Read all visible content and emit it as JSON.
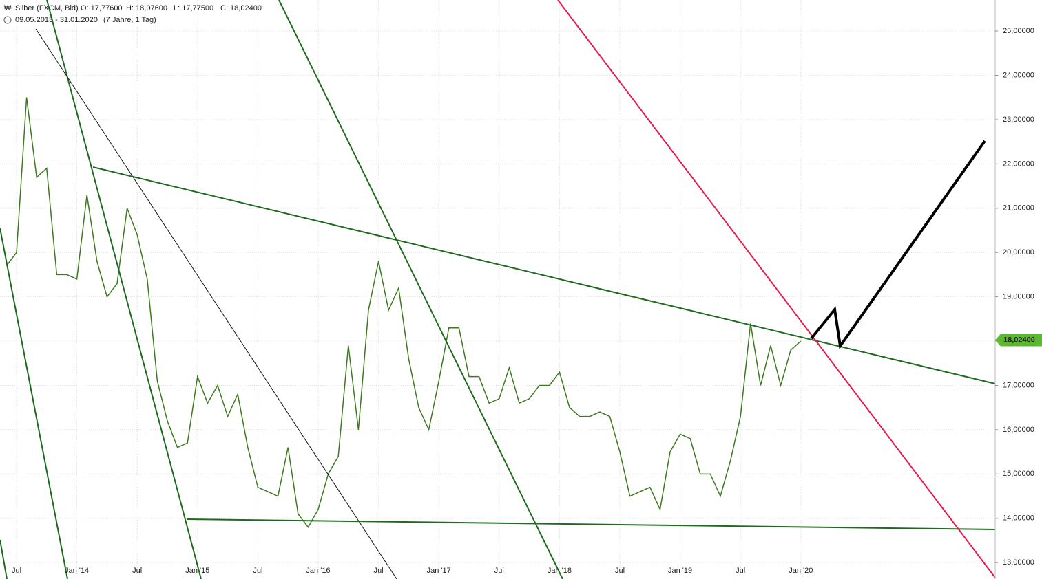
{
  "chart_data": {
    "type": "line",
    "title": "Silber (FXCM, Bid)",
    "open": "O: 17,77600",
    "high": "H: 18,07600",
    "low": "L: 17,77500",
    "close": "C: 18,02400",
    "date_range": "09.05.2013 - 31.01.2020",
    "period": "(7 Jahre, 1 Tag)",
    "last_price": {
      "value": 18.024,
      "label": "18,02400"
    },
    "categories": [
      null,
      "Jul",
      null,
      null,
      null,
      null,
      null,
      "Jan '14",
      null,
      null,
      null,
      null,
      null,
      "Jul",
      null,
      null,
      null,
      null,
      null,
      "Jan '15",
      null,
      null,
      null,
      null,
      null,
      "Jul",
      null,
      null,
      null,
      null,
      null,
      "Jan '16",
      null,
      null,
      null,
      null,
      null,
      "Jul",
      null,
      null,
      null,
      null,
      null,
      "Jan '17",
      null,
      null,
      null,
      null,
      null,
      "Jul",
      null,
      null,
      null,
      null,
      null,
      "Jan '18",
      null,
      null,
      null,
      null,
      null,
      "Jul",
      null,
      null,
      null,
      null,
      null,
      "Jan '19",
      null,
      null,
      null,
      null,
      null,
      "Jul",
      null,
      null,
      null,
      null,
      null,
      "Jan '20"
    ],
    "series": [
      {
        "name": "Silber",
        "color": "#3d7a1f",
        "values": [
          19.7,
          20.0,
          23.5,
          21.7,
          21.9,
          19.5,
          19.5,
          19.4,
          21.3,
          19.8,
          19.0,
          19.3,
          21.0,
          20.4,
          19.4,
          17.1,
          16.2,
          15.6,
          15.7,
          17.2,
          16.6,
          17.0,
          16.3,
          16.8,
          15.6,
          14.7,
          14.6,
          14.5,
          15.6,
          14.1,
          13.8,
          14.2,
          15.0,
          15.4,
          17.9,
          16.0,
          18.7,
          19.8,
          18.7,
          19.2,
          17.6,
          16.5,
          16.0,
          17.1,
          18.3,
          18.3,
          17.2,
          17.2,
          16.6,
          16.7,
          17.4,
          16.6,
          16.7,
          17.0,
          17.0,
          17.3,
          16.5,
          16.3,
          16.3,
          16.4,
          16.3,
          15.5,
          14.5,
          14.6,
          14.7,
          14.2,
          15.5,
          15.9,
          15.8,
          15.0,
          15.0,
          14.5,
          15.3,
          16.3,
          18.4,
          17.0,
          17.9,
          17.0,
          17.8,
          18.0
        ]
      }
    ],
    "ylim": [
      12.63,
      25.7
    ],
    "yticks": [
      {
        "value": 13,
        "label": "13,00000"
      },
      {
        "value": 14,
        "label": "14,00000"
      },
      {
        "value": 15,
        "label": "15,00000"
      },
      {
        "value": 16,
        "label": "16,00000"
      },
      {
        "value": 17,
        "label": "17,00000"
      },
      {
        "value": 18,
        "label": "18,00000"
      },
      {
        "value": 19,
        "label": "19,00000"
      },
      {
        "value": 20,
        "label": "20,00000"
      },
      {
        "value": 21,
        "label": "21,00000"
      },
      {
        "value": 22,
        "label": "22,00000"
      },
      {
        "value": 23,
        "label": "23,00000"
      },
      {
        "value": 24,
        "label": "24,00000"
      },
      {
        "value": 25,
        "label": "25,00000"
      }
    ],
    "grid": true
  }
}
